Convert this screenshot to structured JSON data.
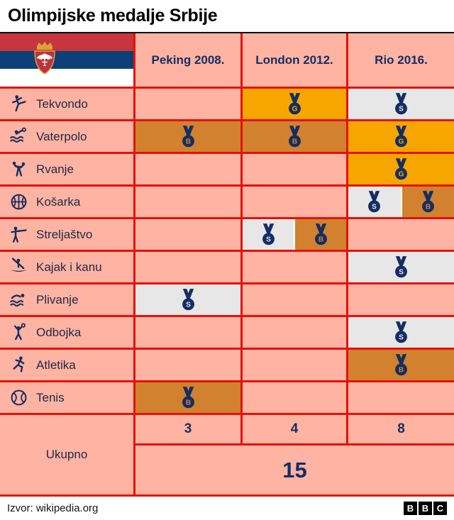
{
  "title": "Olimpijske medalje Srbije",
  "source": "Izvor: wikipedia.org",
  "bbc": [
    "B",
    "B",
    "C"
  ],
  "colors": {
    "salmon": "#ffb3a2",
    "red": "#e3120b",
    "navy": "#142e63",
    "black": "#000000",
    "flag_red": "#c6363c",
    "flag_blue": "#0c4076",
    "flag_white": "#ffffff"
  },
  "medals": {
    "gold": {
      "letter": "G",
      "bg": "#f7a600"
    },
    "silver": {
      "letter": "S",
      "bg": "#e7e7e7"
    },
    "bronze": {
      "letter": "B",
      "bg": "#d2812e"
    }
  },
  "chart_data": {
    "type": "table",
    "title": "Olimpijske medalje Srbije",
    "columns": [
      "Peking 2008.",
      "London 2012.",
      "Rio 2016."
    ],
    "sports": [
      {
        "label": "Tekvondo",
        "icon": "taekwondo-icon",
        "medals": [
          [],
          [
            "gold"
          ],
          [
            "silver"
          ]
        ]
      },
      {
        "label": "Vaterpolo",
        "icon": "waterpolo-icon",
        "medals": [
          [
            "bronze"
          ],
          [
            "bronze"
          ],
          [
            "gold"
          ]
        ]
      },
      {
        "label": "Rvanje",
        "icon": "wrestling-icon",
        "medals": [
          [],
          [],
          [
            "gold"
          ]
        ]
      },
      {
        "label": "Košarka",
        "icon": "basketball-icon",
        "medals": [
          [],
          [],
          [
            "silver",
            "bronze"
          ]
        ]
      },
      {
        "label": "Streljaštvo",
        "icon": "shooting-icon",
        "medals": [
          [],
          [
            "silver",
            "bronze"
          ],
          []
        ]
      },
      {
        "label": "Kajak i kanu",
        "icon": "canoe-icon",
        "medals": [
          [],
          [],
          [
            "silver"
          ]
        ]
      },
      {
        "label": "Plivanje",
        "icon": "swimming-icon",
        "medals": [
          [
            "silver"
          ],
          [],
          []
        ]
      },
      {
        "label": "Odbojka",
        "icon": "volleyball-icon",
        "medals": [
          [],
          [],
          [
            "silver"
          ]
        ]
      },
      {
        "label": "Atletika",
        "icon": "athletics-icon",
        "medals": [
          [],
          [],
          [
            "bronze"
          ]
        ]
      },
      {
        "label": "Tenis",
        "icon": "tennis-icon",
        "medals": [
          [
            "bronze"
          ],
          [],
          []
        ]
      }
    ],
    "totals": {
      "label": "Ukupno",
      "per_year": [
        3,
        4,
        8
      ],
      "overall": 15
    },
    "source": "Izvor: wikipedia.org"
  }
}
